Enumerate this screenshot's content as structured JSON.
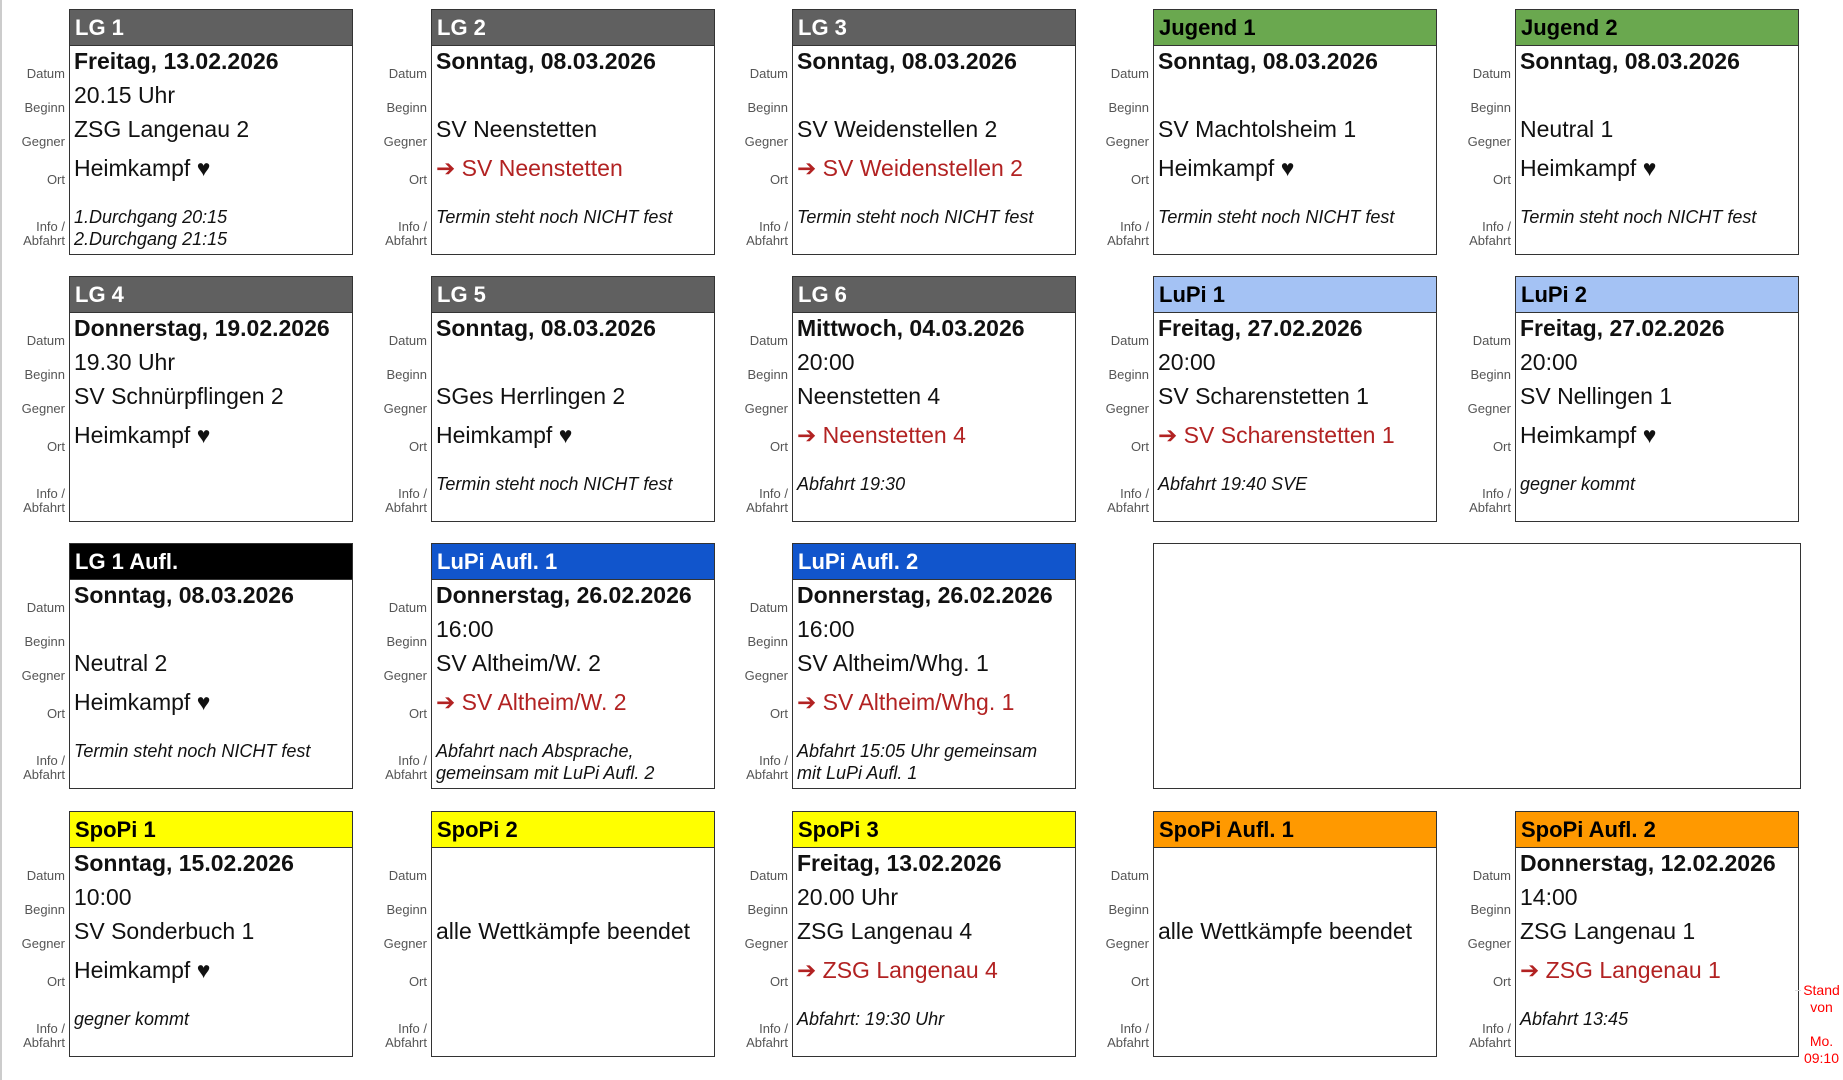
{
  "labels": {
    "datum": "Datum",
    "beginn": "Beginn",
    "gegner": "Gegner",
    "ort": "Ort",
    "info": "Info /",
    "abfahrt": "Abfahrt"
  },
  "colors": {
    "gray": "#606060",
    "green": "#6aa84f",
    "lightblue": "#a4c2f4",
    "black": "#000000",
    "blue": "#1155cc",
    "yellow": "#ffff00",
    "orange": "#ff9900",
    "away_text": "#b22222"
  },
  "cards": [
    {
      "title": "LG 1",
      "color": "gray",
      "title_dark": false,
      "datum": "Freitag, 13.02.2026",
      "beginn": "20.15 Uhr",
      "gegner": "ZSG Langenau 2",
      "ort": "Heimkampf ♥",
      "away": false,
      "info": "1.Durchgang 20:15\n2.Durchgang 21:15"
    },
    {
      "title": "LG 2",
      "color": "gray",
      "title_dark": false,
      "datum": "Sonntag, 08.03.2026",
      "beginn": "",
      "gegner": "SV Neenstetten",
      "ort": "➔ SV Neenstetten",
      "away": true,
      "info": "Termin steht noch NICHT fest"
    },
    {
      "title": "LG 3",
      "color": "gray",
      "title_dark": false,
      "datum": "Sonntag, 08.03.2026",
      "beginn": "",
      "gegner": "SV Weidenstellen 2",
      "ort": "➔ SV Weidenstellen 2",
      "away": true,
      "info": "Termin steht noch NICHT fest"
    },
    {
      "title": "Jugend 1",
      "color": "green",
      "title_dark": true,
      "datum": "Sonntag, 08.03.2026",
      "beginn": "",
      "gegner": "SV Machtolsheim 1",
      "ort": "Heimkampf ♥",
      "away": false,
      "info": "Termin steht noch NICHT fest"
    },
    {
      "title": "Jugend 2",
      "color": "green",
      "title_dark": true,
      "datum": "Sonntag, 08.03.2026",
      "beginn": "",
      "gegner": "Neutral 1",
      "ort": "Heimkampf ♥",
      "away": false,
      "info": "Termin steht noch NICHT fest"
    },
    {
      "title": "LG 4",
      "color": "gray",
      "title_dark": false,
      "datum": "Donnerstag, 19.02.2026",
      "beginn": "19.30 Uhr",
      "gegner": "SV Schnürpflingen 2",
      "ort": "Heimkampf ♥",
      "away": false,
      "info": ""
    },
    {
      "title": "LG 5",
      "color": "gray",
      "title_dark": false,
      "datum": "Sonntag, 08.03.2026",
      "beginn": "",
      "gegner": "SGes Herrlingen 2",
      "ort": "Heimkampf ♥",
      "away": false,
      "info": "Termin steht noch NICHT fest"
    },
    {
      "title": "LG 6",
      "color": "gray",
      "title_dark": false,
      "datum": "Mittwoch, 04.03.2026",
      "beginn": "20:00",
      "gegner": "Neenstetten 4",
      "ort": "➔ Neenstetten 4",
      "away": true,
      "info": "Abfahrt 19:30"
    },
    {
      "title": "LuPi 1",
      "color": "lightblue",
      "title_dark": true,
      "datum": "Freitag, 27.02.2026",
      "beginn": "20:00",
      "gegner": "SV Scharenstetten 1",
      "ort": "➔ SV Scharenstetten 1",
      "away": true,
      "info": "Abfahrt 19:40 SVE"
    },
    {
      "title": "LuPi 2",
      "color": "lightblue",
      "title_dark": true,
      "datum": "Freitag, 27.02.2026",
      "beginn": "20:00",
      "gegner": "SV Nellingen 1",
      "ort": "Heimkampf ♥",
      "away": false,
      "info": "gegner kommt"
    },
    {
      "title": "LG 1 Aufl.",
      "color": "black",
      "title_dark": false,
      "datum": "Sonntag, 08.03.2026",
      "beginn": "",
      "gegner": "Neutral 2",
      "ort": "Heimkampf ♥",
      "away": false,
      "info": "Termin steht noch NICHT fest"
    },
    {
      "title": "LuPi Aufl. 1",
      "color": "blue",
      "title_dark": false,
      "datum": "Donnerstag, 26.02.2026",
      "beginn": "16:00",
      "gegner": "SV Altheim/W. 2",
      "ort": "➔ SV Altheim/W. 2",
      "away": true,
      "info": "Abfahrt nach Absprache,\ngemeinsam mit LuPi Aufl. 2"
    },
    {
      "title": "LuPi Aufl. 2",
      "color": "blue",
      "title_dark": false,
      "datum": "Donnerstag, 26.02.2026",
      "beginn": "16:00",
      "gegner": "SV Altheim/Whg. 1",
      "ort": "➔ SV Altheim/Whg. 1",
      "away": true,
      "info": "Abfahrt 15:05 Uhr gemeinsam\nmit LuPi Aufl. 1"
    },
    {
      "title": "SpoPi 1",
      "color": "yellow",
      "title_dark": true,
      "datum": "Sonntag, 15.02.2026",
      "beginn": "10:00",
      "gegner": "SV Sonderbuch 1",
      "ort": "Heimkampf ♥",
      "away": false,
      "info": "gegner kommt"
    },
    {
      "title": "SpoPi 2",
      "color": "yellow",
      "title_dark": true,
      "datum": "",
      "beginn": "",
      "gegner": "alle Wettkämpfe beendet",
      "ort": "",
      "away": false,
      "info": ""
    },
    {
      "title": "SpoPi 3",
      "color": "yellow",
      "title_dark": true,
      "datum": "Freitag, 13.02.2026",
      "beginn": "20.00 Uhr",
      "gegner": "ZSG Langenau 4",
      "ort": "➔ ZSG Langenau 4",
      "away": true,
      "info": "Abfahrt: 19:30 Uhr"
    },
    {
      "title": "SpoPi Aufl. 1",
      "color": "orange",
      "title_dark": true,
      "datum": "",
      "beginn": "",
      "gegner": "alle Wettkämpfe beendet",
      "ort": "",
      "away": false,
      "info": ""
    },
    {
      "title": "SpoPi Aufl. 2",
      "color": "orange",
      "title_dark": true,
      "datum": "Donnerstag, 12.02.2026",
      "beginn": "14:00",
      "gegner": "ZSG Langenau 1",
      "ort": "➔ ZSG Langenau 1",
      "away": true,
      "info": "Abfahrt 13:45"
    }
  ],
  "stand": {
    "line1": "Stand",
    "line2": "von",
    "line3": "Mo.",
    "line4": "09:10"
  }
}
